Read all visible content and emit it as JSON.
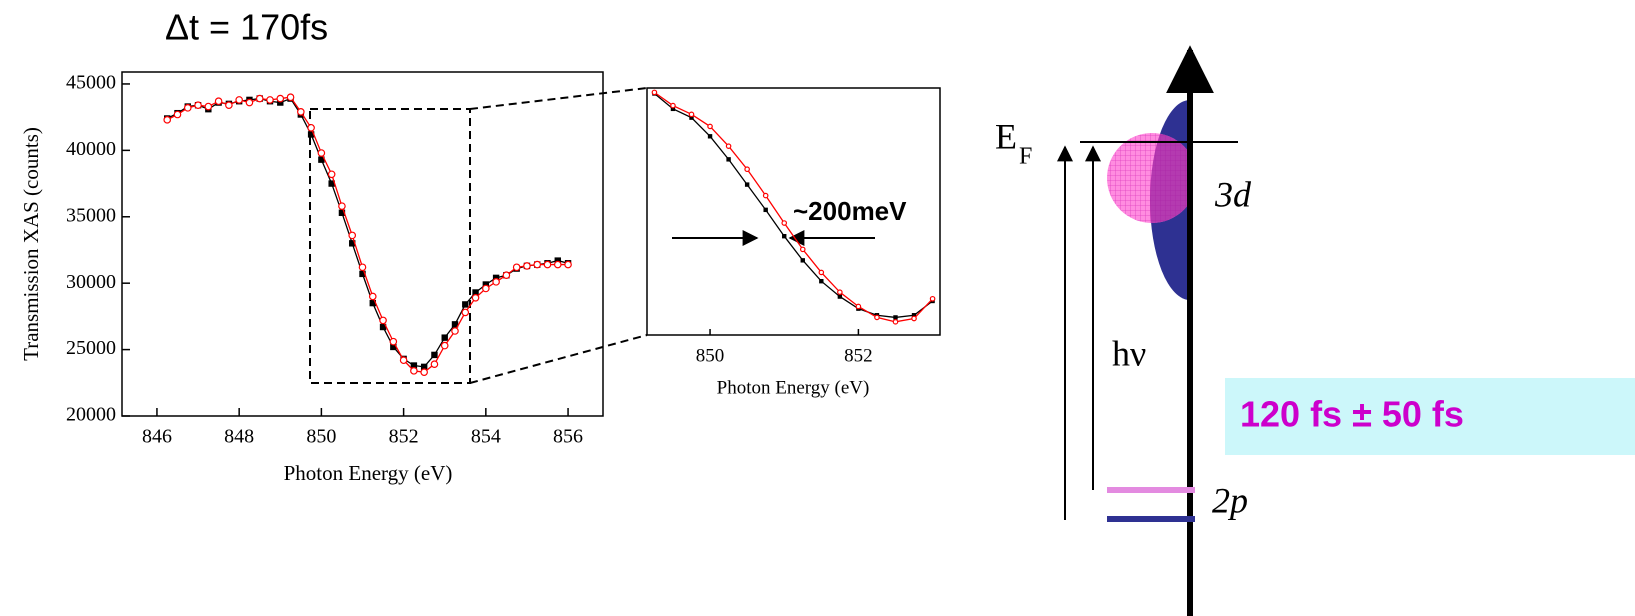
{
  "chart_data": [
    {
      "type": "line",
      "title": "Δt = 170fs",
      "xlabel": "Photon Energy (eV)",
      "ylabel": "Transmission XAS (counts)",
      "x": [
        846.25,
        846.5,
        846.75,
        847.0,
        847.25,
        847.5,
        847.75,
        848.0,
        848.25,
        848.5,
        848.75,
        849.0,
        849.25,
        849.5,
        849.75,
        850.0,
        850.25,
        850.5,
        850.75,
        851.0,
        851.25,
        851.5,
        851.75,
        852.0,
        852.25,
        852.5,
        852.75,
        853.0,
        853.25,
        853.5,
        853.75,
        854.0,
        854.25,
        854.5,
        854.75,
        855.0,
        855.25,
        855.5,
        855.75,
        856.0
      ],
      "series": [
        {
          "color": "#000000",
          "marker": "square",
          "values": [
            42400,
            42800,
            43300,
            43400,
            43100,
            43600,
            43500,
            43700,
            43800,
            43900,
            43700,
            43600,
            43900,
            42700,
            41200,
            39300,
            37500,
            35300,
            33000,
            30700,
            28500,
            26700,
            25200,
            24300,
            23800,
            23700,
            24600,
            25900,
            26900,
            28400,
            29300,
            29900,
            30400,
            30600,
            31100,
            31300,
            31400,
            31500,
            31700,
            31500
          ]
        },
        {
          "color": "#ff0000",
          "marker": "circle",
          "values": [
            42300,
            42700,
            43200,
            43400,
            43300,
            43700,
            43400,
            43800,
            43600,
            43900,
            43800,
            43900,
            44000,
            42900,
            41700,
            39800,
            38200,
            35800,
            33600,
            31200,
            29000,
            27200,
            25600,
            24200,
            23400,
            23300,
            23900,
            25300,
            26400,
            27800,
            28900,
            29600,
            30100,
            30600,
            31200,
            31300,
            31400,
            31400,
            31400,
            31400
          ]
        }
      ],
      "xlim": [
        845.15,
        856.85
      ],
      "ylim": [
        20000,
        45900
      ],
      "xticks": [
        846,
        848,
        850,
        852,
        854,
        856
      ],
      "yticks": [
        20000,
        25000,
        30000,
        35000,
        40000,
        45000
      ]
    },
    {
      "type": "line",
      "xlabel": "Photon Energy (eV)",
      "annotation": "~200meV",
      "x": [
        849.25,
        849.5,
        849.75,
        850.0,
        850.25,
        850.5,
        850.75,
        851.0,
        851.25,
        851.5,
        851.75,
        852.0,
        852.25,
        852.5,
        852.75,
        853.0
      ],
      "series": [
        {
          "color": "#000000",
          "marker": "square",
          "values": [
            44500,
            43100,
            42300,
            40600,
            38500,
            36200,
            33900,
            31500,
            29300,
            27400,
            26000,
            24900,
            24300,
            24100,
            24300,
            25600
          ]
        },
        {
          "color": "#ff0000",
          "marker": "circle",
          "values": [
            44600,
            43400,
            42600,
            41500,
            39700,
            37600,
            35200,
            32700,
            30300,
            28200,
            26400,
            25100,
            24100,
            23700,
            24000,
            25800
          ]
        }
      ],
      "xlim": [
        849.15,
        853.1
      ],
      "ylim": [
        22500,
        45000
      ],
      "xticks": [
        850,
        852
      ]
    }
  ],
  "diagram": {
    "fermi_label": "E",
    "fermi_subscript": "F",
    "band_3d": "3d",
    "photon": "hν",
    "core_2p": "2p",
    "lifetime": "120 fs ± 50 fs"
  }
}
